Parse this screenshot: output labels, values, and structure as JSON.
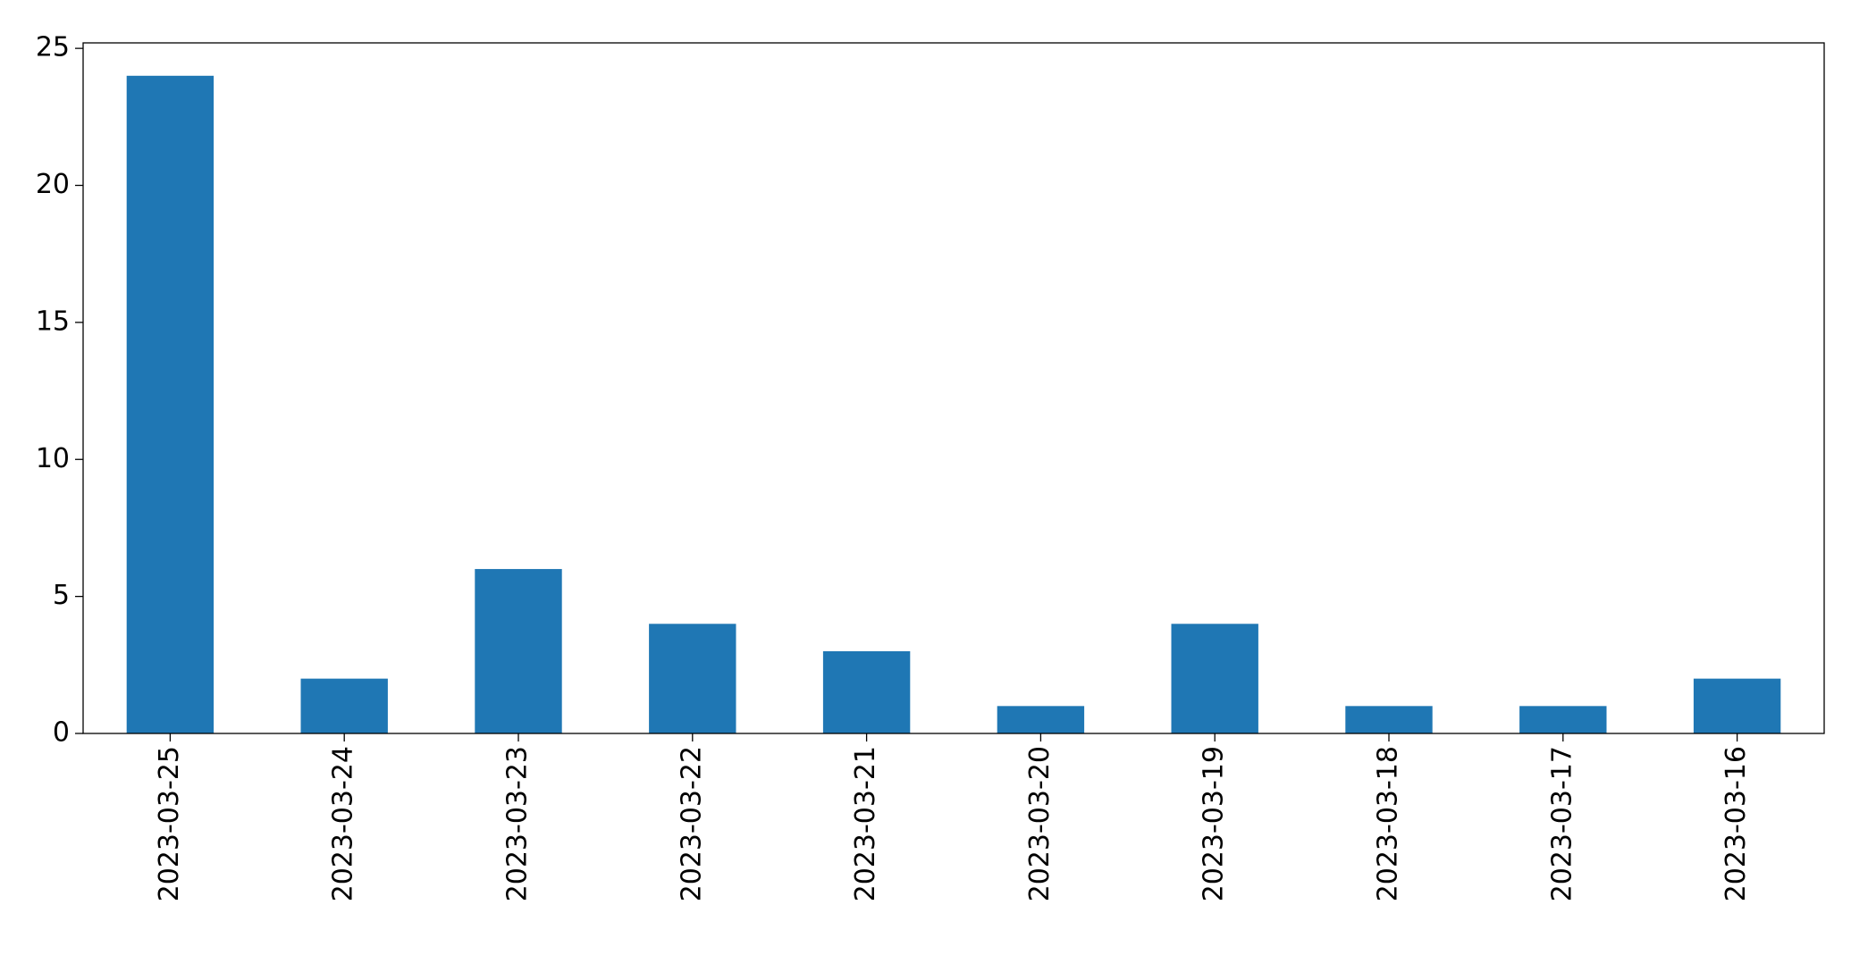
{
  "chart_data": {
    "type": "bar",
    "categories": [
      "2023-03-25",
      "2023-03-24",
      "2023-03-23",
      "2023-03-22",
      "2023-03-21",
      "2023-03-20",
      "2023-03-19",
      "2023-03-18",
      "2023-03-17",
      "2023-03-16"
    ],
    "values": [
      24,
      2,
      6,
      4,
      3,
      1,
      4,
      1,
      1,
      2
    ],
    "color": "#1f77b4",
    "ylim": [
      0,
      25.2
    ],
    "yticks": [
      0,
      5,
      10,
      15,
      20,
      25
    ],
    "grid": false
  }
}
